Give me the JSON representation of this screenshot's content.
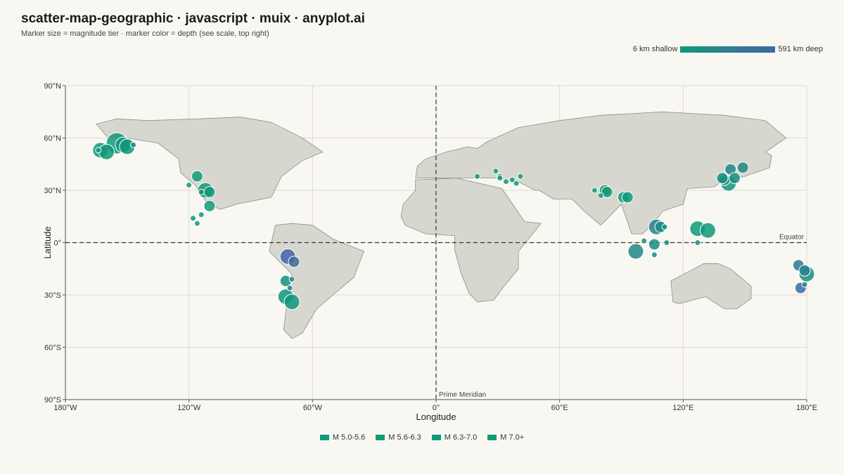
{
  "title": "scatter-map-geographic · javascript · muix · anyplot.ai",
  "subtitle": "Marker size = magnitude tier · marker color = depth (see scale, top right)",
  "depth_scale": {
    "min_label": "6 km shallow",
    "max_label": "591 km deep",
    "colors": [
      "#0f9a78",
      "#3f65a6"
    ]
  },
  "chart_data": {
    "type": "scatter",
    "xlabel": "Longitude",
    "ylabel": "Latitude",
    "xlim": [
      -180,
      180
    ],
    "ylim": [
      -90,
      90
    ],
    "x_ticks": [
      {
        "value": -180,
        "label": "180°W"
      },
      {
        "value": -120,
        "label": "120°W"
      },
      {
        "value": -60,
        "label": "60°W"
      },
      {
        "value": 0,
        "label": "0°"
      },
      {
        "value": 60,
        "label": "60°E"
      },
      {
        "value": 120,
        "label": "120°E"
      },
      {
        "value": 180,
        "label": "180°E"
      }
    ],
    "y_ticks": [
      {
        "value": 90,
        "label": "90°N"
      },
      {
        "value": 60,
        "label": "60°N"
      },
      {
        "value": 30,
        "label": "30°N"
      },
      {
        "value": 0,
        "label": "0°"
      },
      {
        "value": -30,
        "label": "30°S"
      },
      {
        "value": -60,
        "label": "60°S"
      },
      {
        "value": -90,
        "label": "90°S"
      }
    ],
    "grid": true,
    "reference_lines": [
      {
        "axis": "y",
        "value": 0,
        "label": "Equator"
      },
      {
        "axis": "x",
        "value": 0,
        "label": "Prime Meridian"
      }
    ],
    "legend": {
      "position": "bottom-center",
      "entries": [
        "M 5.0-5.6",
        "M 5.6-6.3",
        "M 6.3-7.0",
        "M 7.0+"
      ]
    },
    "colors": {
      "shallow": "#0f9a78",
      "deep": "#3f65a6",
      "land": "#d7d6cf",
      "land_stroke": "#8f8f88"
    },
    "landmasses": [
      {
        "name": "North America",
        "points": [
          [
            -165,
            68
          ],
          [
            -155,
            71
          ],
          [
            -140,
            70
          ],
          [
            -115,
            71
          ],
          [
            -95,
            72
          ],
          [
            -80,
            69
          ],
          [
            -65,
            60
          ],
          [
            -55,
            52
          ],
          [
            -65,
            47
          ],
          [
            -75,
            38
          ],
          [
            -80,
            26
          ],
          [
            -97,
            22
          ],
          [
            -105,
            19
          ],
          [
            -112,
            24
          ],
          [
            -117,
            33
          ],
          [
            -124,
            40
          ],
          [
            -125,
            48
          ],
          [
            -135,
            57
          ],
          [
            -150,
            60
          ],
          [
            -160,
            61
          ],
          [
            -165,
            68
          ]
        ]
      },
      {
        "name": "South America",
        "points": [
          [
            -78,
            10
          ],
          [
            -70,
            11
          ],
          [
            -60,
            10
          ],
          [
            -50,
            2
          ],
          [
            -35,
            -5
          ],
          [
            -40,
            -20
          ],
          [
            -48,
            -28
          ],
          [
            -58,
            -38
          ],
          [
            -65,
            -52
          ],
          [
            -70,
            -55
          ],
          [
            -74,
            -50
          ],
          [
            -72,
            -30
          ],
          [
            -70,
            -18
          ],
          [
            -81,
            -5
          ],
          [
            -78,
            10
          ]
        ]
      },
      {
        "name": "Africa",
        "points": [
          [
            -10,
            36
          ],
          [
            10,
            37
          ],
          [
            32,
            31
          ],
          [
            43,
            12
          ],
          [
            51,
            11
          ],
          [
            40,
            -5
          ],
          [
            40,
            -15
          ],
          [
            33,
            -25
          ],
          [
            28,
            -33
          ],
          [
            20,
            -34
          ],
          [
            16,
            -29
          ],
          [
            12,
            -17
          ],
          [
            9,
            -4
          ],
          [
            9,
            4
          ],
          [
            -5,
            5
          ],
          [
            -15,
            10
          ],
          [
            -17,
            15
          ],
          [
            -16,
            22
          ],
          [
            -10,
            30
          ],
          [
            -10,
            36
          ]
        ]
      },
      {
        "name": "Eurasia",
        "points": [
          [
            -10,
            37
          ],
          [
            -9,
            44
          ],
          [
            -5,
            48
          ],
          [
            5,
            52
          ],
          [
            12,
            54
          ],
          [
            15,
            55
          ],
          [
            20,
            54
          ],
          [
            25,
            58
          ],
          [
            40,
            66
          ],
          [
            60,
            70
          ],
          [
            80,
            73
          ],
          [
            110,
            75
          ],
          [
            140,
            73
          ],
          [
            160,
            70
          ],
          [
            170,
            60
          ],
          [
            160,
            52
          ],
          [
            163,
            50
          ],
          [
            162,
            43
          ],
          [
            150,
            38
          ],
          [
            140,
            36
          ],
          [
            135,
            32
          ],
          [
            122,
            31
          ],
          [
            120,
            22
          ],
          [
            110,
            18
          ],
          [
            105,
            10
          ],
          [
            100,
            5
          ],
          [
            95,
            5
          ],
          [
            90,
            22
          ],
          [
            80,
            10
          ],
          [
            72,
            18
          ],
          [
            66,
            25
          ],
          [
            57,
            25
          ],
          [
            50,
            30
          ],
          [
            48,
            30
          ],
          [
            40,
            35
          ],
          [
            36,
            36
          ],
          [
            30,
            37
          ],
          [
            10,
            37
          ],
          [
            -10,
            37
          ]
        ]
      },
      {
        "name": "Australia",
        "points": [
          [
            114,
            -22
          ],
          [
            122,
            -17
          ],
          [
            130,
            -12
          ],
          [
            137,
            -12
          ],
          [
            143,
            -15
          ],
          [
            153,
            -25
          ],
          [
            153,
            -32
          ],
          [
            146,
            -38
          ],
          [
            140,
            -38
          ],
          [
            131,
            -31
          ],
          [
            118,
            -35
          ],
          [
            115,
            -34
          ],
          [
            114,
            -22
          ]
        ]
      }
    ],
    "points": [
      {
        "lon": -163,
        "lat": 53,
        "tier": 2,
        "depth": 20
      },
      {
        "lon": -160,
        "lat": 52,
        "tier": 2,
        "depth": 35
      },
      {
        "lon": -155,
        "lat": 57,
        "tier": 3,
        "depth": 25
      },
      {
        "lon": -152,
        "lat": 56,
        "tier": 2,
        "depth": 30
      },
      {
        "lon": -150,
        "lat": 55,
        "tier": 2,
        "depth": 40
      },
      {
        "lon": -147,
        "lat": 56,
        "tier": 0,
        "depth": 15
      },
      {
        "lon": -164,
        "lat": 53,
        "tier": 0,
        "depth": 20
      },
      {
        "lon": -116,
        "lat": 38,
        "tier": 1,
        "depth": 10
      },
      {
        "lon": -120,
        "lat": 33,
        "tier": 0,
        "depth": 10
      },
      {
        "lon": -112,
        "lat": 30,
        "tier": 2,
        "depth": 15
      },
      {
        "lon": -114,
        "lat": 29,
        "tier": 0,
        "depth": 12
      },
      {
        "lon": -110,
        "lat": 29,
        "tier": 1,
        "depth": 20
      },
      {
        "lon": -110,
        "lat": 21,
        "tier": 1,
        "depth": 10
      },
      {
        "lon": -114,
        "lat": 16,
        "tier": 0,
        "depth": 30
      },
      {
        "lon": -118,
        "lat": 14,
        "tier": 0,
        "depth": 25
      },
      {
        "lon": -116,
        "lat": 11,
        "tier": 0,
        "depth": 20
      },
      {
        "lon": -72,
        "lat": -8,
        "tier": 2,
        "depth": 591
      },
      {
        "lon": -69,
        "lat": -11,
        "tier": 1,
        "depth": 500
      },
      {
        "lon": -70,
        "lat": -21,
        "tier": 0,
        "depth": 200
      },
      {
        "lon": -73,
        "lat": -22,
        "tier": 1,
        "depth": 100
      },
      {
        "lon": -71,
        "lat": -26,
        "tier": 0,
        "depth": 300
      },
      {
        "lon": -73,
        "lat": -31,
        "tier": 2,
        "depth": 40
      },
      {
        "lon": -70,
        "lat": -34,
        "tier": 2,
        "depth": 25
      },
      {
        "lon": 20,
        "lat": 38,
        "tier": 0,
        "depth": 15
      },
      {
        "lon": 29,
        "lat": 41,
        "tier": 0,
        "depth": 10
      },
      {
        "lon": 31,
        "lat": 38,
        "tier": 0,
        "depth": 15
      },
      {
        "lon": 31,
        "lat": 37,
        "tier": 0,
        "depth": 20
      },
      {
        "lon": 34,
        "lat": 35,
        "tier": 0,
        "depth": 25
      },
      {
        "lon": 37,
        "lat": 36,
        "tier": 0,
        "depth": 20
      },
      {
        "lon": 39,
        "lat": 34,
        "tier": 0,
        "depth": 15
      },
      {
        "lon": 41,
        "lat": 38,
        "tier": 0,
        "depth": 10
      },
      {
        "lon": 77,
        "lat": 30,
        "tier": 0,
        "depth": 15
      },
      {
        "lon": 80,
        "lat": 27,
        "tier": 0,
        "depth": 20
      },
      {
        "lon": 82,
        "lat": 30,
        "tier": 1,
        "depth": 25
      },
      {
        "lon": 83,
        "lat": 29,
        "tier": 1,
        "depth": 10
      },
      {
        "lon": 91,
        "lat": 26,
        "tier": 1,
        "depth": 20
      },
      {
        "lon": 93,
        "lat": 26,
        "tier": 1,
        "depth": 30
      },
      {
        "lon": 107,
        "lat": 9,
        "tier": 2,
        "depth": 300
      },
      {
        "lon": 109,
        "lat": 9,
        "tier": 1,
        "depth": 200
      },
      {
        "lon": 111,
        "lat": 9,
        "tier": 0,
        "depth": 60
      },
      {
        "lon": 101,
        "lat": 1,
        "tier": 0,
        "depth": 150
      },
      {
        "lon": 97,
        "lat": -5,
        "tier": 2,
        "depth": 200
      },
      {
        "lon": 106,
        "lat": -1,
        "tier": 1,
        "depth": 150
      },
      {
        "lon": 112,
        "lat": 0,
        "tier": 0,
        "depth": 100
      },
      {
        "lon": 106,
        "lat": -7,
        "tier": 0,
        "depth": 200
      },
      {
        "lon": 127,
        "lat": 8,
        "tier": 2,
        "depth": 30
      },
      {
        "lon": 132,
        "lat": 7,
        "tier": 2,
        "depth": 40
      },
      {
        "lon": 127,
        "lat": 0,
        "tier": 0,
        "depth": 200
      },
      {
        "lon": 143,
        "lat": 42,
        "tier": 1,
        "depth": 250
      },
      {
        "lon": 140,
        "lat": 36,
        "tier": 1,
        "depth": 150
      },
      {
        "lon": 142,
        "lat": 34,
        "tier": 2,
        "depth": 80
      },
      {
        "lon": 145,
        "lat": 37,
        "tier": 1,
        "depth": 100
      },
      {
        "lon": 149,
        "lat": 43,
        "tier": 1,
        "depth": 200
      },
      {
        "lon": 139,
        "lat": 37,
        "tier": 1,
        "depth": 100
      },
      {
        "lon": 176,
        "lat": -13,
        "tier": 1,
        "depth": 400
      },
      {
        "lon": 179,
        "lat": -16,
        "tier": 1,
        "depth": 300
      },
      {
        "lon": 180,
        "lat": -18,
        "tier": 2,
        "depth": 150
      },
      {
        "lon": 177,
        "lat": -26,
        "tier": 1,
        "depth": 500
      },
      {
        "lon": 179,
        "lat": -24,
        "tier": 0,
        "depth": 300
      }
    ]
  }
}
